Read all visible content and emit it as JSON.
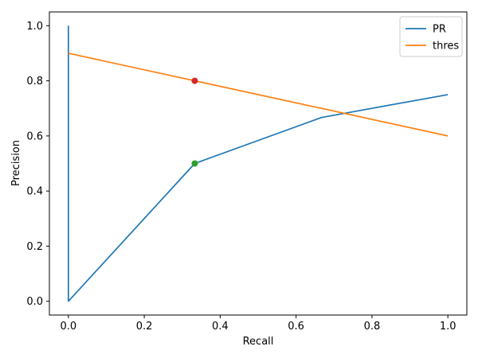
{
  "chart_data": {
    "type": "line",
    "xlabel": "Recall",
    "ylabel": "Precision",
    "xlim": [
      -0.05,
      1.05
    ],
    "ylim": [
      -0.05,
      1.05
    ],
    "x_ticks": [
      0.0,
      0.2,
      0.4,
      0.6,
      0.8,
      1.0
    ],
    "x_tick_labels": [
      "0.0",
      "0.2",
      "0.4",
      "0.6",
      "0.8",
      "1.0"
    ],
    "y_ticks": [
      0.0,
      0.2,
      0.4,
      0.6,
      0.8,
      1.0
    ],
    "y_tick_labels": [
      "0.0",
      "0.2",
      "0.4",
      "0.6",
      "0.8",
      "1.0"
    ],
    "grid": false,
    "legend_position": "top-right",
    "series": [
      {
        "name": "PR",
        "color": "#1f77b4",
        "x": [
          0.0,
          0.0,
          0.333,
          0.667,
          1.0
        ],
        "y": [
          1.0,
          0.0,
          0.5,
          0.667,
          0.75
        ]
      },
      {
        "name": "thres",
        "color": "#ff7f0e",
        "x": [
          0.0,
          0.333,
          0.667,
          1.0
        ],
        "y": [
          0.9,
          0.8,
          0.7,
          0.6
        ]
      }
    ],
    "markers": [
      {
        "x": 0.333,
        "y": 0.5,
        "color": "#2ca02c"
      },
      {
        "x": 0.333,
        "y": 0.8,
        "color": "#d62728"
      }
    ]
  }
}
